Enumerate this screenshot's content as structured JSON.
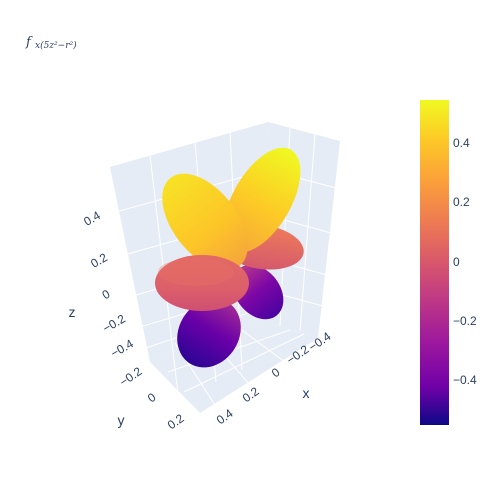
{
  "chart_data": {
    "type": "surface3d",
    "title": "f",
    "title_subscript": "x(5z²−r²)",
    "axes": {
      "x": {
        "label": "x",
        "ticks": [
          "−0.4",
          "−0.2",
          "0",
          "0.2",
          "0.4"
        ],
        "range": [
          -0.5,
          0.5
        ]
      },
      "y": {
        "label": "y",
        "ticks": [
          "−0.2",
          "0",
          "0.2"
        ],
        "range": [
          -0.3,
          0.3
        ]
      },
      "z": {
        "label": "z",
        "ticks": [
          "−0.4",
          "−0.2",
          "0",
          "0.2",
          "0.4"
        ],
        "range": [
          -0.5,
          0.5
        ]
      }
    },
    "colorbar": {
      "ticks": [
        "0.4",
        "0.2",
        "0",
        "−0.2",
        "−0.4"
      ],
      "range": [
        -0.55,
        0.55
      ],
      "colorscale": "plasma"
    },
    "lobes": [
      {
        "name": "upper-right",
        "sign": "positive",
        "peak": 0.55
      },
      {
        "name": "upper-left",
        "sign": "positive",
        "peak": 0.5
      },
      {
        "name": "middle-back",
        "sign": "mixed",
        "peak": 0.1
      },
      {
        "name": "middle-front",
        "sign": "mixed",
        "peak": 0.1
      },
      {
        "name": "lower-right",
        "sign": "negative",
        "peak": -0.45
      },
      {
        "name": "lower-left",
        "sign": "negative",
        "peak": -0.55
      }
    ],
    "grid": true,
    "legend": "colorbar-right"
  }
}
